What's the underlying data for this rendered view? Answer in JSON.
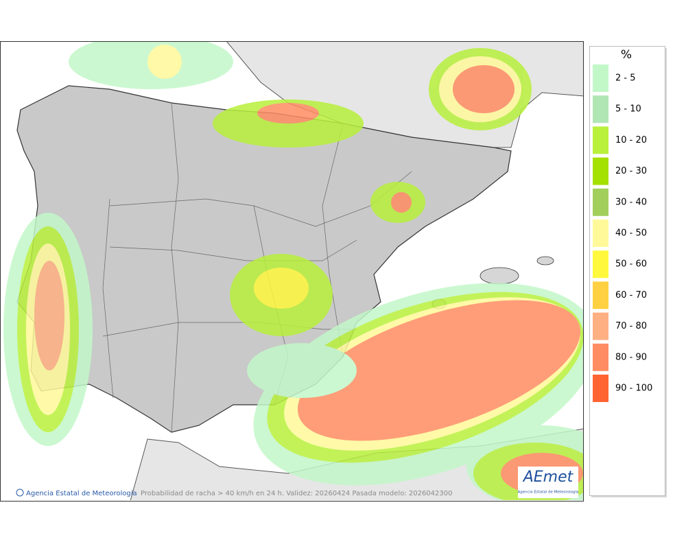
{
  "map": {
    "footer_credit": "Agencia Estatal de Meteorología",
    "caption": "Probabilidad de racha > 40 km/h en 24 h. Validez: 20260424 Pasada modelo: 2026042300",
    "logo": {
      "name": "AEmet",
      "subtitle": "Agencia Estatal de Meteorología"
    }
  },
  "legend": {
    "title": "%",
    "items": [
      {
        "label": "2 - 5",
        "color": "#c2f7c8"
      },
      {
        "label": "5 - 10",
        "color": "#b0e6b4"
      },
      {
        "label": "10 - 20",
        "color": "#b8f03c"
      },
      {
        "label": "20 - 30",
        "color": "#a4e000"
      },
      {
        "label": "30 - 40",
        "color": "#a2cf5c"
      },
      {
        "label": "40 - 50",
        "color": "#fff99a"
      },
      {
        "label": "50 - 60",
        "color": "#fff83c"
      },
      {
        "label": "60 - 70",
        "color": "#ffd042"
      },
      {
        "label": "70 - 80",
        "color": "#ffb082"
      },
      {
        "label": "80 - 90",
        "color": "#ff8c62"
      },
      {
        "label": "90 - 100",
        "color": "#ff6432"
      }
    ]
  }
}
